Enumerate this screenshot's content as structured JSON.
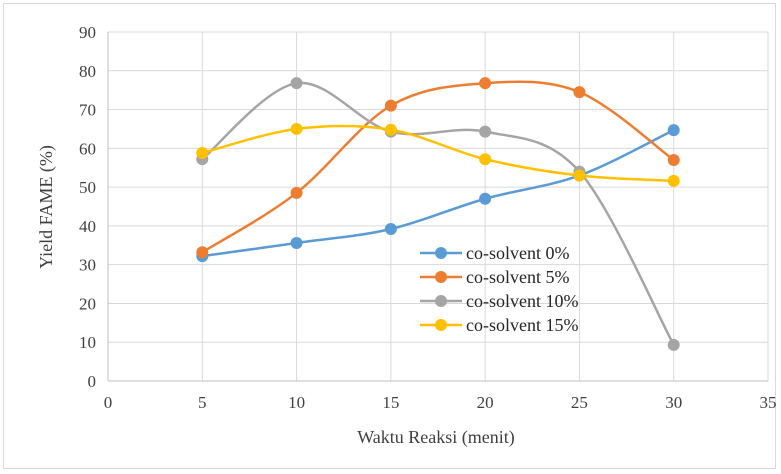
{
  "chart_data": {
    "type": "line",
    "xlabel": "Waktu Reaksi (menit)",
    "ylabel": "Yield FAME (%)",
    "xlim": [
      0,
      35
    ],
    "ylim": [
      0,
      90
    ],
    "xticks": [
      0,
      5,
      10,
      15,
      20,
      25,
      30,
      35
    ],
    "yticks": [
      0,
      10,
      20,
      30,
      40,
      50,
      60,
      70,
      80,
      90
    ],
    "grid": true,
    "legend_position": "center-right",
    "x": [
      5,
      10,
      15,
      20,
      25,
      30
    ],
    "series": [
      {
        "name": "co-solvent 0%",
        "color": "#5b9bd5",
        "values": [
          32.2,
          35.6,
          39.2,
          47.0,
          53.0,
          64.7
        ]
      },
      {
        "name": "co-solvent 5%",
        "color": "#ed7d31",
        "values": [
          33.2,
          48.5,
          71.0,
          76.8,
          74.5,
          57.0
        ]
      },
      {
        "name": "co-solvent 10%",
        "color": "#a5a5a5",
        "values": [
          57.2,
          76.8,
          64.3,
          64.3,
          54.0,
          9.3
        ]
      },
      {
        "name": "co-solvent 15%",
        "color": "#ffc000",
        "values": [
          58.8,
          65.0,
          64.8,
          57.2,
          53.0,
          51.6
        ]
      }
    ]
  }
}
